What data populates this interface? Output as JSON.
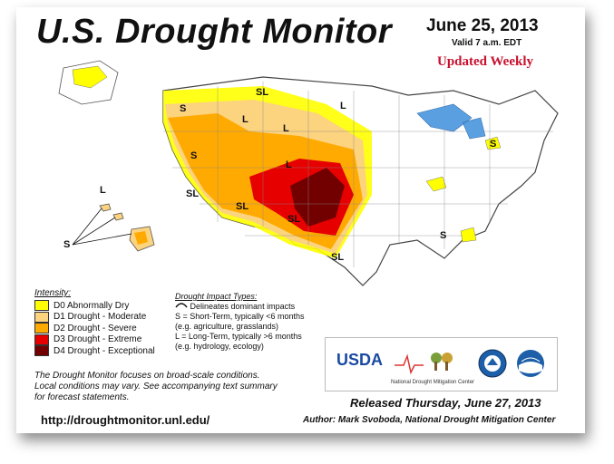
{
  "header": {
    "title": "U.S. Drought Monitor",
    "date": "June 25, 2013",
    "valid": "Valid 7 a.m. EDT",
    "updated": "Updated Weekly"
  },
  "legend": {
    "heading": "Intensity:",
    "items": [
      {
        "label": "D0 Abnormally Dry",
        "color": "#ffff00"
      },
      {
        "label": "D1 Drought - Moderate",
        "color": "#fcd37f"
      },
      {
        "label": "D2 Drought - Severe",
        "color": "#ffaa00"
      },
      {
        "label": "D3 Drought - Extreme",
        "color": "#e60000"
      },
      {
        "label": "D4 Drought - Exceptional",
        "color": "#730000"
      }
    ]
  },
  "impact": {
    "heading": "Drought Impact Types:",
    "line1": "Delineates dominant impacts",
    "line2": "S = Short-Term, typically <6 months",
    "line3": "(e.g. agriculture, grasslands)",
    "line4": "L = Long-Term, typically >6 months",
    "line5": "(e.g. hydrology, ecology)"
  },
  "notes": {
    "line1": "The Drought Monitor focuses on broad-scale conditions.",
    "line2": "Local conditions may vary. See accompanying text summary",
    "line3": "for forecast statements."
  },
  "url": "http://droughtmonitor.unl.edu/",
  "footer": {
    "released": "Released Thursday, June 27, 2013",
    "author": "Author: Mark Svoboda, National Drought Mitigation Center"
  },
  "logos": {
    "usda": "USDA",
    "ndmc": "National Drought Mitigation Center"
  },
  "map_labels": {
    "s": "S",
    "l": "L",
    "sl": "SL"
  }
}
